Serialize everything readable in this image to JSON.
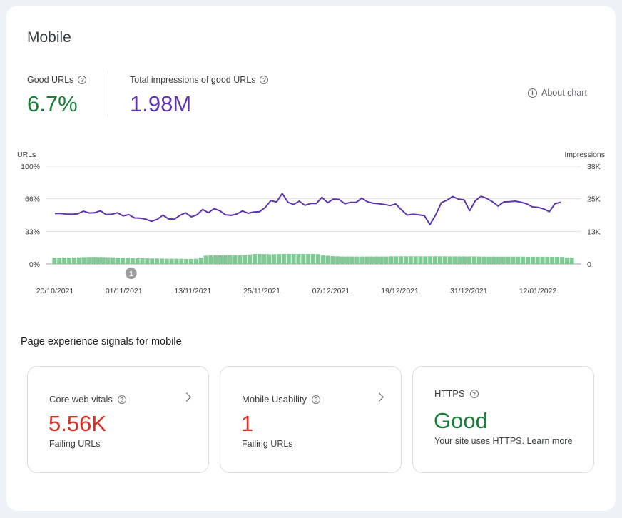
{
  "card": {
    "title": "Mobile",
    "good_urls": {
      "label": "Good URLs",
      "value": "6.7%",
      "color": "#188038"
    },
    "impressions": {
      "label": "Total impressions of good URLs",
      "value": "1.98M",
      "color": "#5e35b1"
    },
    "about_chart": "About chart",
    "help_glyph": "?",
    "info_glyph": "i"
  },
  "chart_data": {
    "type": "line",
    "left_axis_title": "URLs",
    "right_axis_title": "Impressions",
    "left_ticks": [
      "100%",
      "66%",
      "33%",
      "0%"
    ],
    "right_ticks": [
      "38K",
      "25K",
      "13K",
      "0"
    ],
    "ylim_left": [
      0,
      100
    ],
    "ylim_right": [
      0,
      38000
    ],
    "x_tick_labels": [
      "20/10/2021",
      "01/11/2021",
      "13/11/2021",
      "25/11/2021",
      "07/12/2021",
      "19/12/2021",
      "31/12/2021",
      "12/01/2022"
    ],
    "annotation": {
      "label": "1",
      "date_index": 11
    },
    "grid": true,
    "series": [
      {
        "kind": "bar",
        "axis": "left",
        "color": "#81c995",
        "unit": "%",
        "values": [
          6.6,
          6.6,
          6.7,
          6.6,
          6.7,
          6.8,
          7.0,
          7.1,
          7.2,
          7.1,
          7.0,
          6.9,
          6.8,
          6.6,
          6.5,
          6.3,
          6.2,
          6.0,
          5.9,
          5.8,
          5.7,
          5.6,
          5.5,
          5.4,
          5.4,
          5.4,
          5.3,
          5.2,
          5.2,
          5.3,
          6.6,
          8.5,
          8.8,
          8.9,
          8.9,
          8.8,
          8.9,
          8.9,
          8.8,
          8.8,
          9.7,
          10.2,
          10.3,
          10.1,
          10.0,
          10.0,
          10.1,
          10.2,
          10.3,
          10.3,
          10.2,
          10.2,
          10.2,
          10.2,
          10.0,
          9.0,
          8.5,
          8.0,
          7.8,
          7.6,
          7.6,
          7.6,
          7.6,
          7.6,
          7.6,
          7.6,
          7.6,
          7.6,
          7.6,
          7.8,
          7.8,
          7.8,
          7.8,
          7.8,
          7.8,
          7.8,
          7.8,
          7.8,
          7.8,
          7.8,
          7.8,
          7.7,
          7.7,
          7.7,
          7.7,
          7.7,
          7.7,
          7.6,
          7.5,
          7.5,
          7.5,
          7.5,
          7.5,
          7.5,
          7.5,
          7.5,
          7.5,
          7.4,
          7.4,
          7.4,
          7.4,
          7.4,
          7.3,
          7.3,
          7.2,
          6.7,
          6.6
        ]
      },
      {
        "kind": "line",
        "axis": "right",
        "color": "#5e35b1",
        "values": [
          19600,
          19600,
          19400,
          19300,
          19500,
          20500,
          19800,
          19900,
          20700,
          19200,
          19300,
          19900,
          18700,
          19200,
          17900,
          17800,
          17400,
          16600,
          17300,
          19000,
          17500,
          17400,
          18900,
          19900,
          18300,
          19100,
          21200,
          19900,
          21500,
          20700,
          19100,
          18900,
          19400,
          20600,
          19700,
          20200,
          20300,
          21900,
          24600,
          24100,
          27400,
          24000,
          23100,
          24400,
          22800,
          23500,
          23500,
          25900,
          23800,
          25200,
          25100,
          23400,
          23900,
          23900,
          25600,
          24200,
          23600,
          23400,
          23100,
          22700,
          23300,
          21000,
          19000,
          19300,
          19100,
          18800,
          15300,
          19000,
          23800,
          24800,
          26200,
          25200,
          24900,
          20700,
          24600,
          26300,
          25500,
          24200,
          22500,
          24100,
          24200,
          24400,
          24000,
          23400,
          22200,
          22000,
          21400,
          20300,
          23400,
          24000
        ]
      }
    ]
  },
  "signals": {
    "title": "Page experience signals for mobile",
    "cards": [
      {
        "title": "Core web vitals",
        "value": "5.56K",
        "sub": "Failing URLs",
        "color": "#d93025"
      },
      {
        "title": "Mobile Usability",
        "value": "1",
        "sub": "Failing URLs",
        "color": "#d93025"
      },
      {
        "title": "HTTPS",
        "value": "Good",
        "sub": "Your site uses HTTPS.",
        "link": "Learn more",
        "color": "#188038"
      }
    ]
  }
}
